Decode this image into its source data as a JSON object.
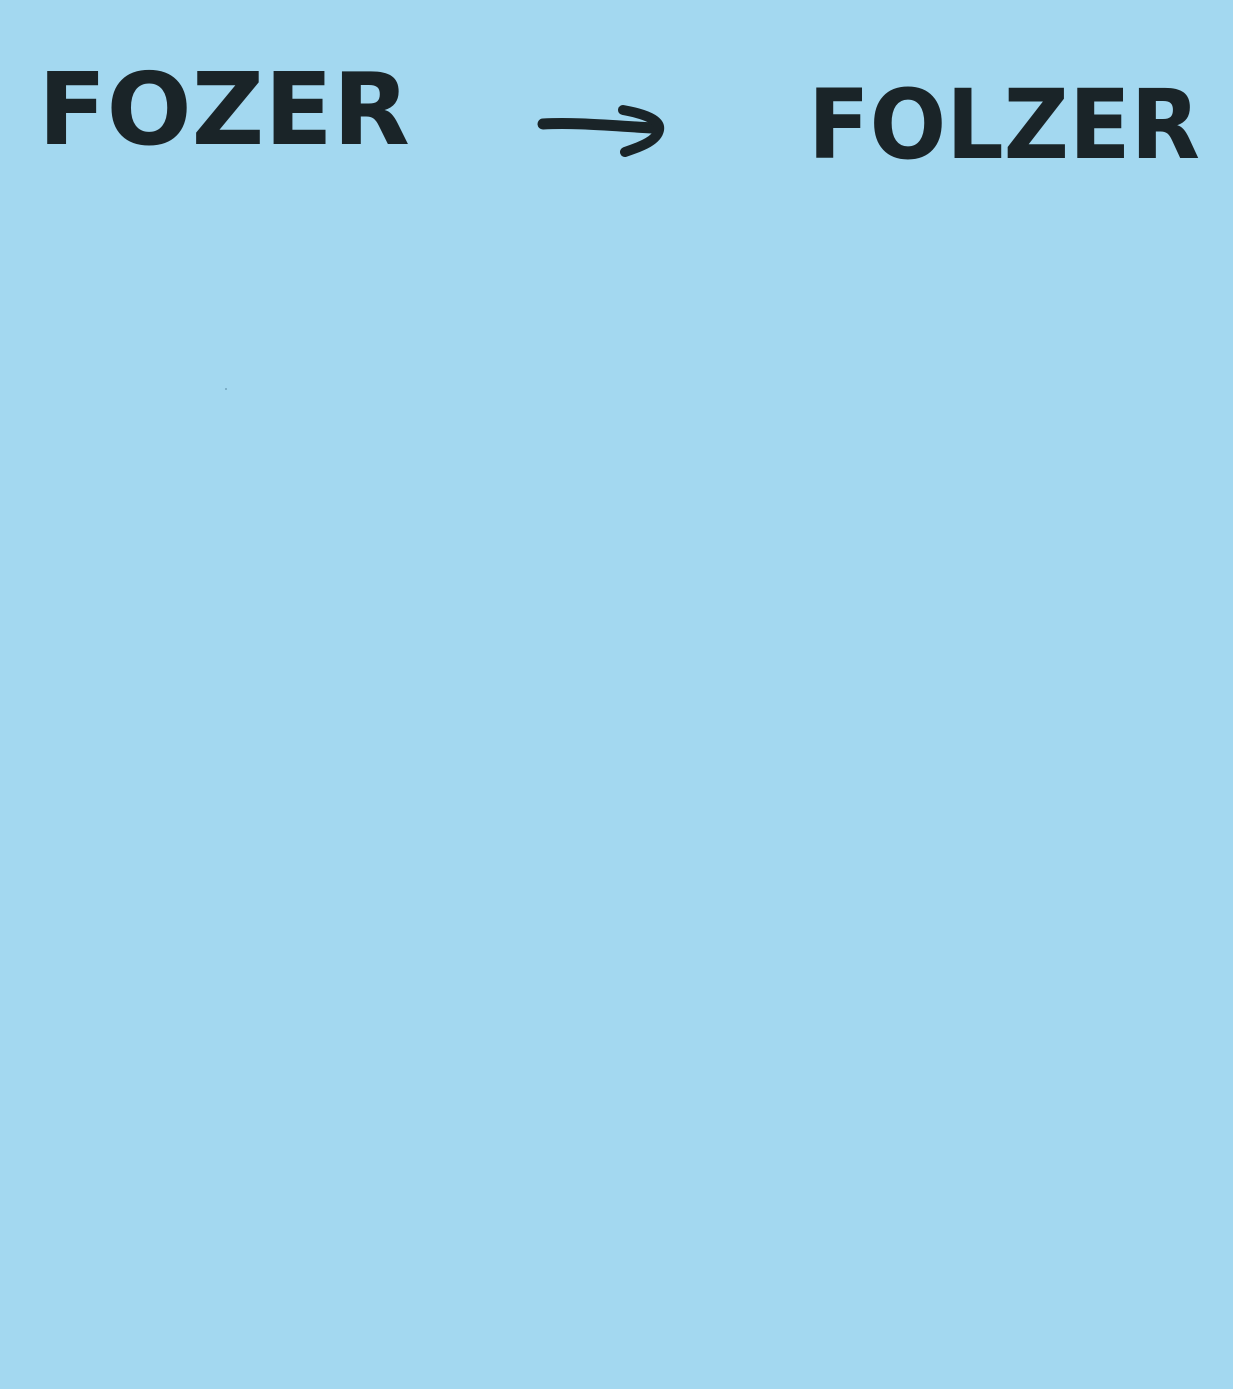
{
  "note": {
    "background_color": "#a3d8f0",
    "ink_color": "#1a2428",
    "original_word": "FOZER",
    "arrow_icon": "right-arrow-icon",
    "corrected_word": "FOLZER"
  }
}
